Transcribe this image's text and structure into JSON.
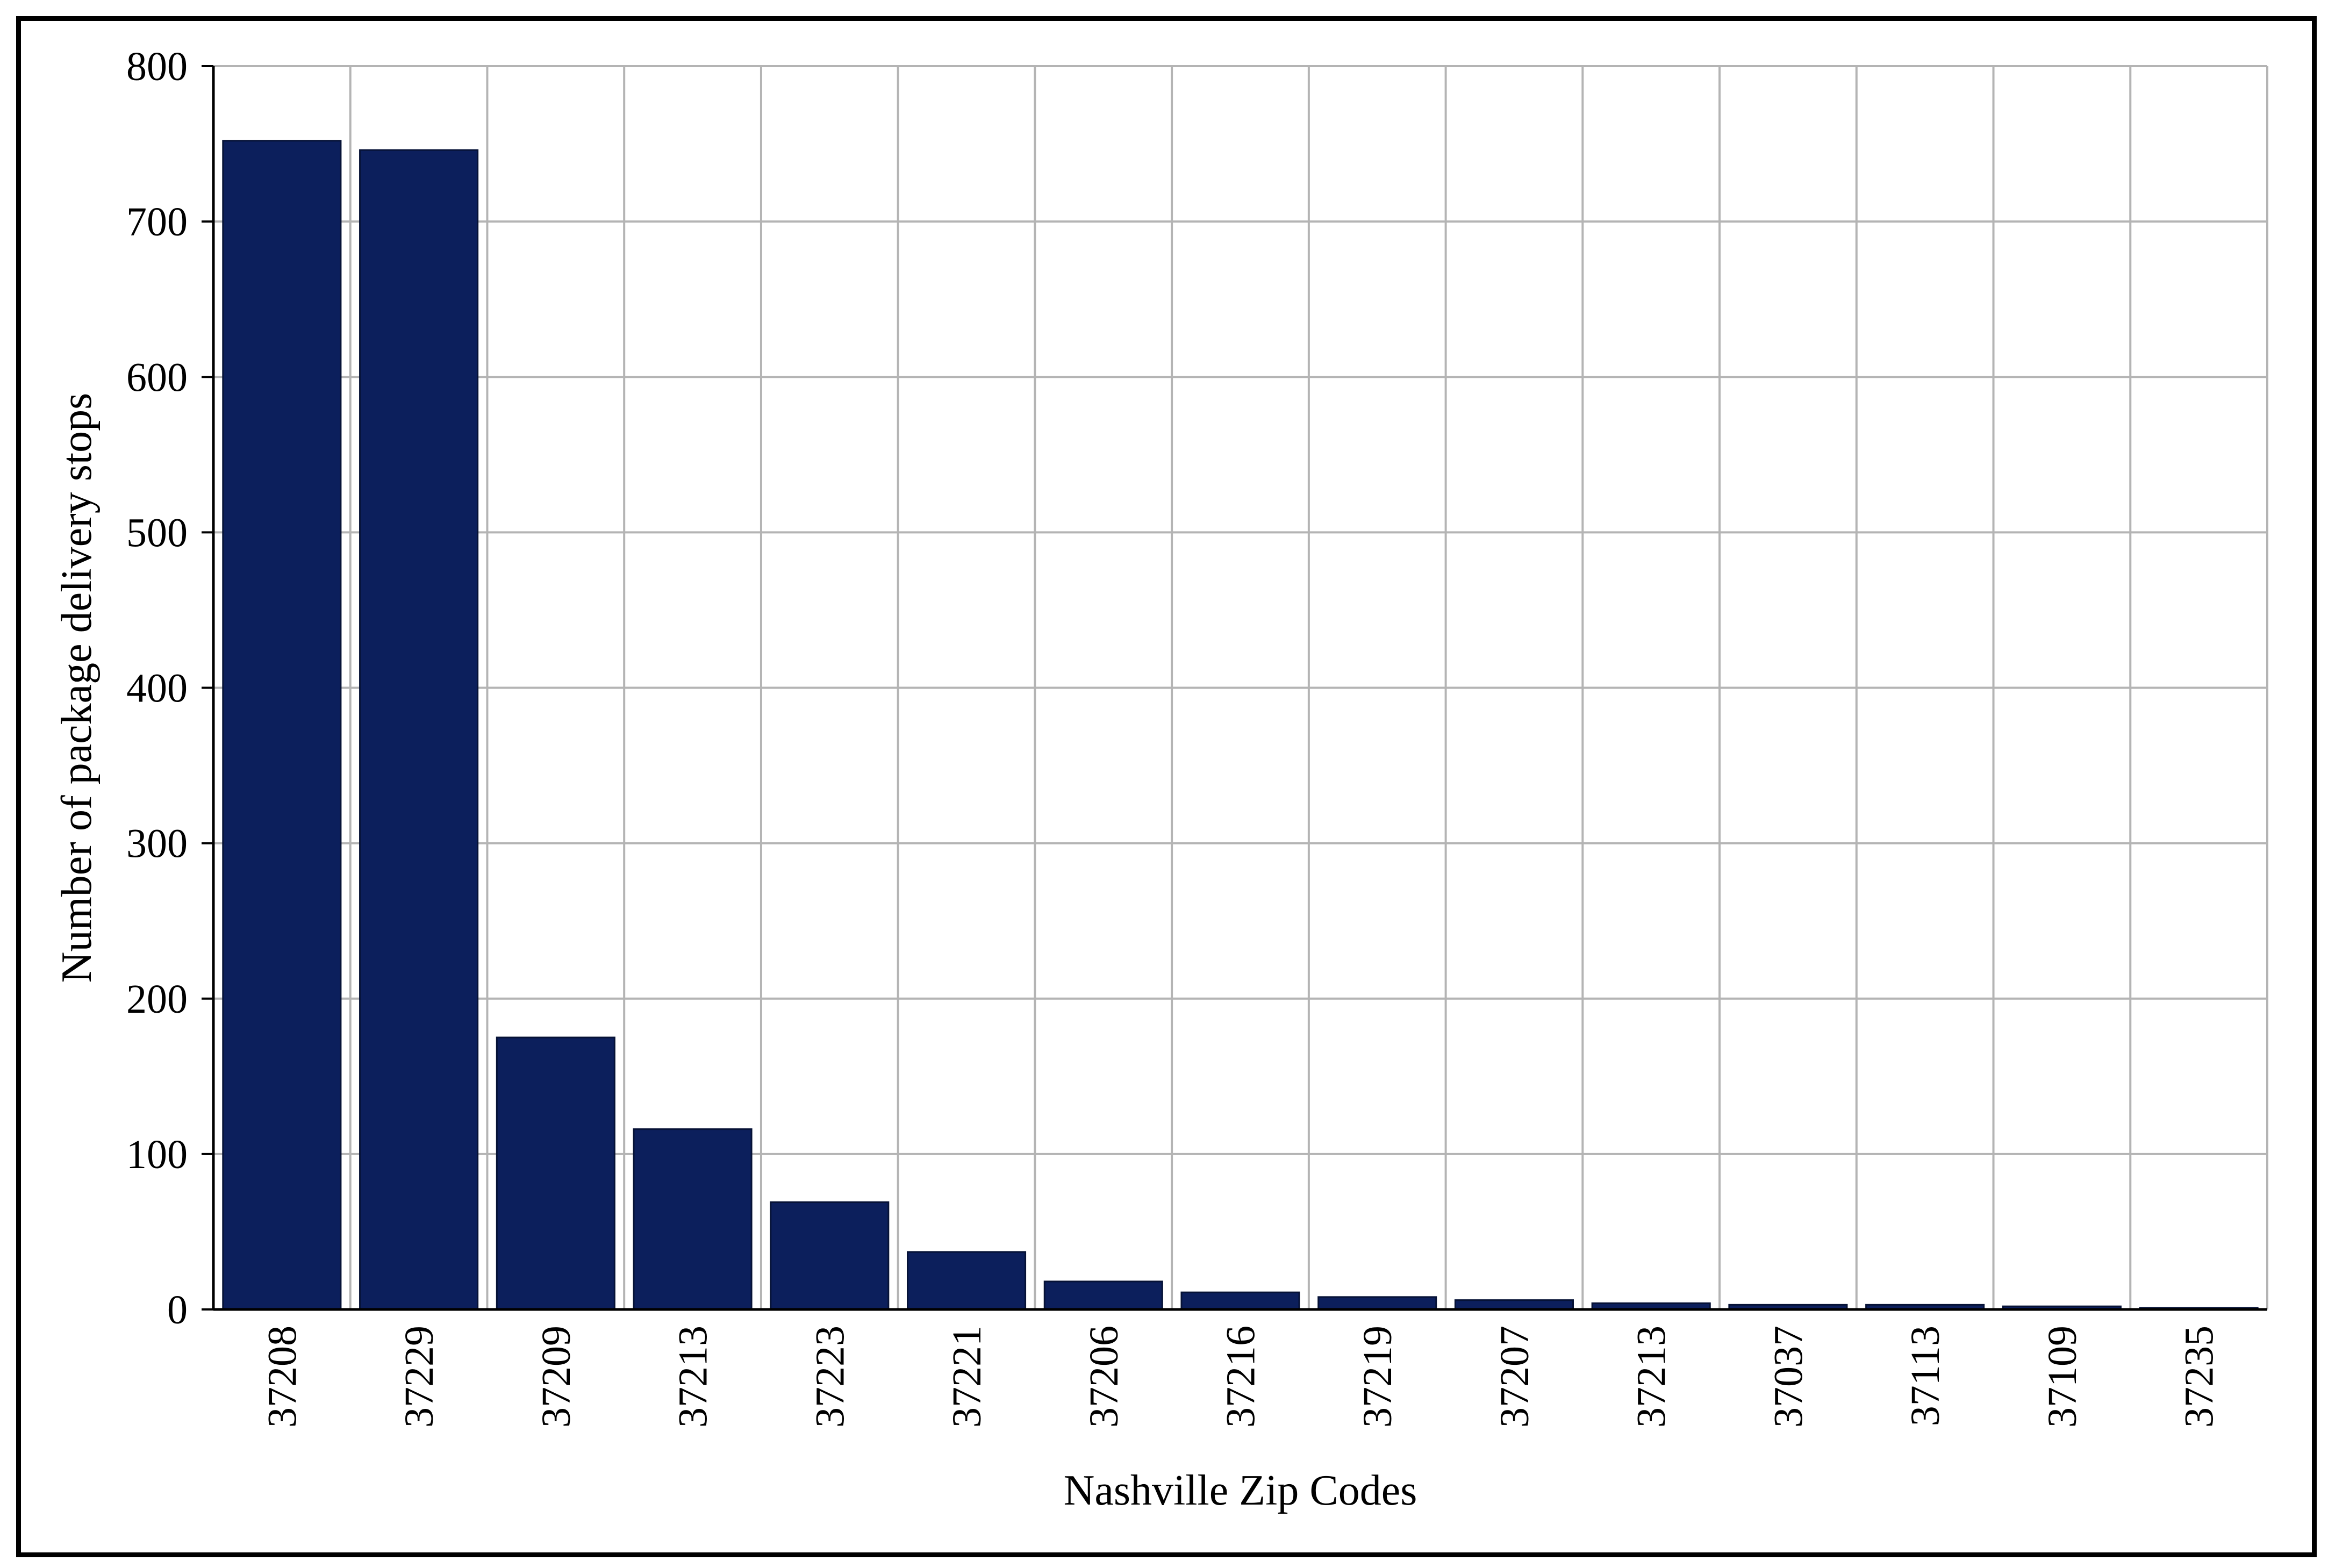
{
  "chart_data": {
    "type": "bar",
    "title": "",
    "xlabel": "Nashville Zip Codes",
    "ylabel": "Number of package delivery stops",
    "ylim": [
      0,
      800
    ],
    "yticks": [
      0,
      100,
      200,
      300,
      400,
      500,
      600,
      700,
      800
    ],
    "grid": true,
    "legend": "none",
    "bar_color": "#0c1f5c",
    "categories": [
      "37208",
      "37229",
      "37209",
      "37213",
      "37223",
      "37221",
      "37206",
      "37216",
      "37219",
      "37207",
      "37213",
      "37037",
      "37113",
      "37109",
      "37235"
    ],
    "values": [
      752,
      746,
      175,
      116,
      69,
      37,
      18,
      11,
      8,
      6,
      4,
      3,
      3,
      2,
      1
    ]
  }
}
